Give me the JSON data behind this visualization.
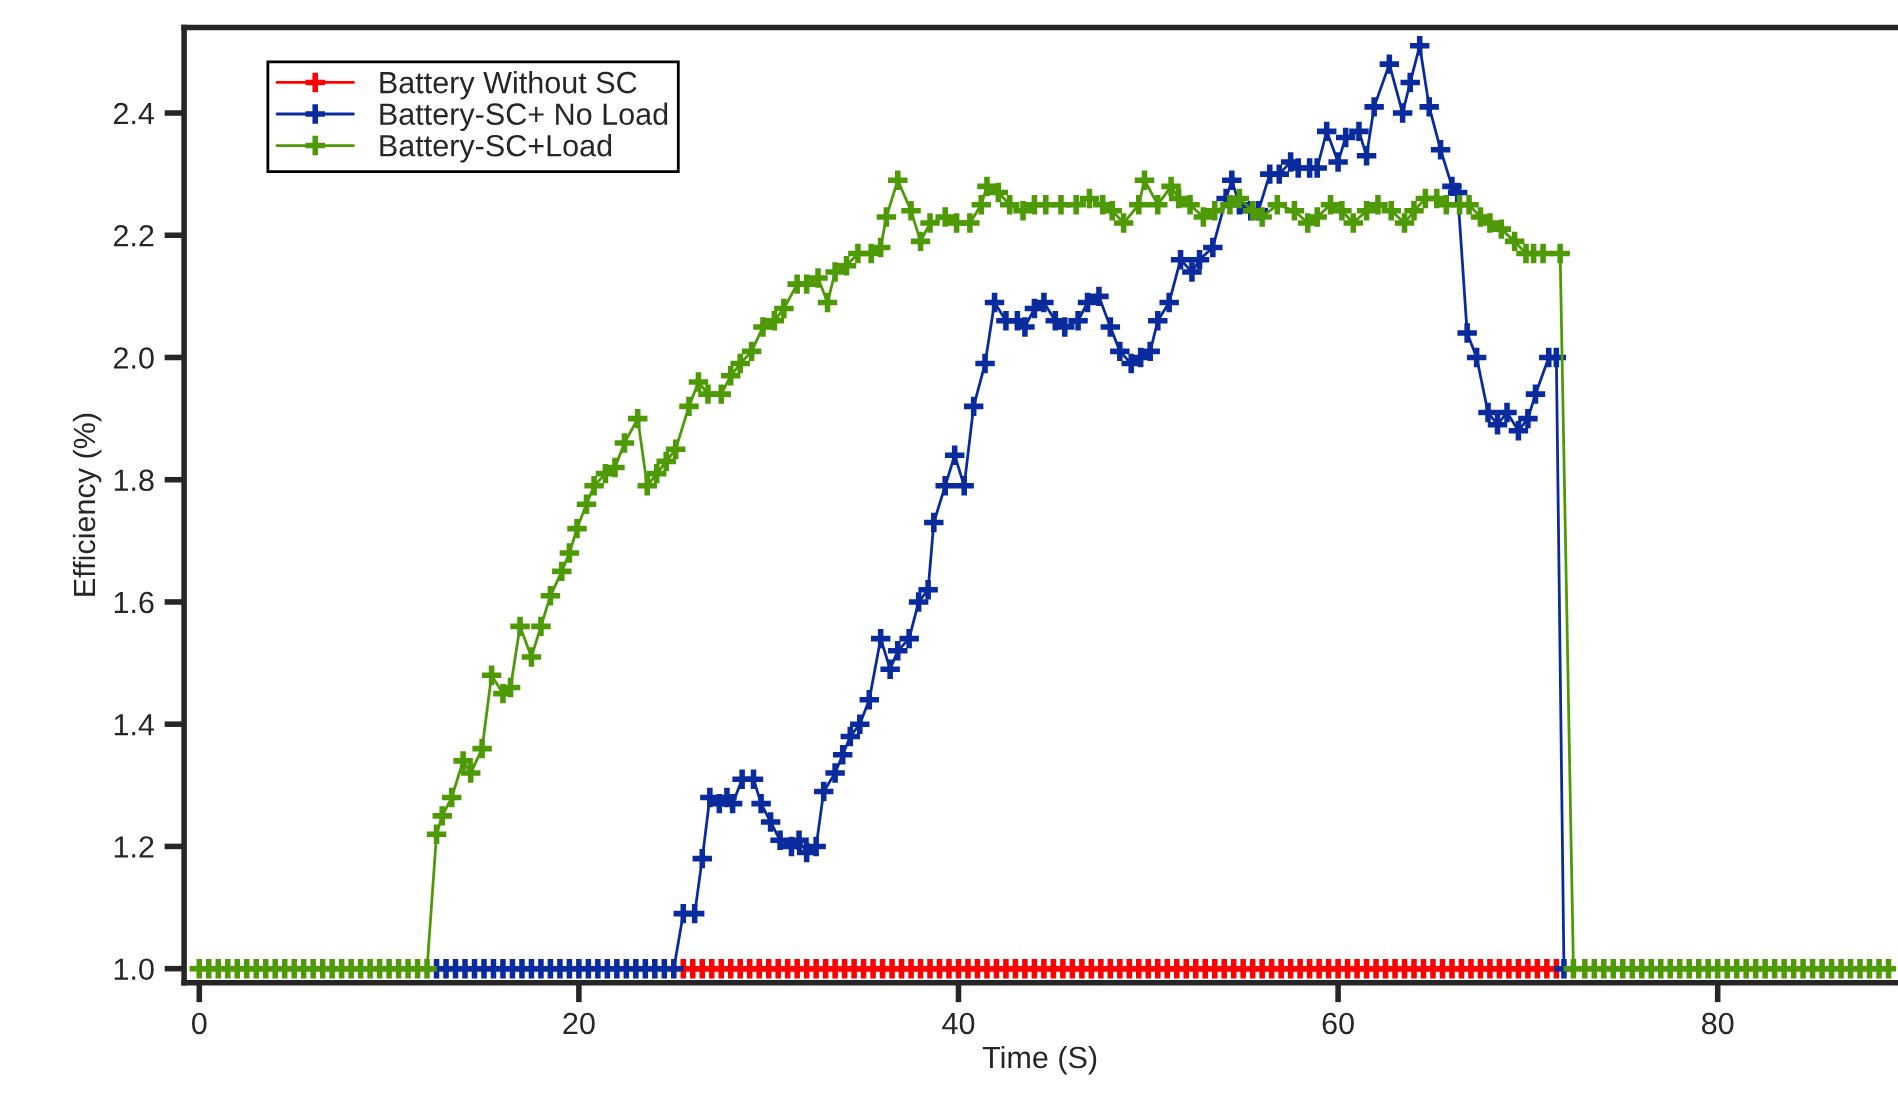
{
  "chart_data": {
    "type": "line",
    "xlabel": "Time (S)",
    "ylabel": "Efficiency (%)",
    "xlim": [
      -0.8,
      89.4
    ],
    "ylim": [
      0.977,
      2.54
    ],
    "xticks": [
      0,
      20,
      40,
      60,
      80
    ],
    "yticks": [
      {
        "value": 1.0,
        "label": "1.0"
      },
      {
        "value": 1.2,
        "label": "1.2"
      },
      {
        "value": 1.4,
        "label": "1.4"
      },
      {
        "value": 1.6,
        "label": "1.6"
      },
      {
        "value": 1.8,
        "label": "1.8"
      },
      {
        "value": 2.0,
        "label": "2.0"
      },
      {
        "value": 2.2,
        "label": "2.2"
      },
      {
        "value": 2.4,
        "label": "2.4"
      }
    ],
    "grid": false,
    "legend": "top left",
    "marker": "cross",
    "line_style": "solid",
    "series": [
      {
        "name": "Battery Without SC",
        "color": "#ff0000",
        "type": "scatter",
        "x": [
          25.5,
          26,
          26.5,
          27,
          27.5,
          28,
          28.5,
          29,
          29.5,
          30,
          30.5,
          31,
          31.5,
          32,
          32.5,
          33,
          33.5,
          34,
          34.5,
          35,
          35.5,
          36,
          36.5,
          37,
          37.5,
          38,
          38.5,
          39,
          39.5,
          40,
          40.5,
          41,
          41.5,
          42,
          42.5,
          43,
          43.5,
          44,
          44.5,
          45,
          45.5,
          46,
          46.5,
          47,
          47.5,
          48,
          48.5,
          49,
          49.5,
          50,
          50.5,
          51,
          51.5,
          52,
          52.5,
          53,
          53.5,
          54,
          54.5,
          55,
          55.5,
          56,
          56.5,
          57,
          57.5,
          58,
          58.5,
          59,
          59.5,
          60,
          60.5,
          61,
          61.5,
          62,
          62.5,
          63,
          63.5,
          64,
          64.5,
          65,
          65.5,
          66,
          66.5,
          67,
          67.5,
          68,
          68.5,
          69,
          69.5,
          70,
          70.5,
          71,
          71.5
        ],
        "values": [
          1.0,
          1.0,
          1.0,
          1.0,
          1.0,
          1.0,
          1.0,
          1.0,
          1.0,
          1.0,
          1.0,
          1.0,
          1.0,
          1.0,
          1.0,
          1.0,
          1.0,
          1.0,
          1.0,
          1.0,
          1.0,
          1.0,
          1.0,
          1.0,
          1.0,
          1.0,
          1.0,
          1.0,
          1.0,
          1.0,
          1.0,
          1.0,
          1.0,
          1.0,
          1.0,
          1.0,
          1.0,
          1.0,
          1.0,
          1.0,
          1.0,
          1.0,
          1.0,
          1.0,
          1.0,
          1.0,
          1.0,
          1.0,
          1.0,
          1.0,
          1.0,
          1.0,
          1.0,
          1.0,
          1.0,
          1.0,
          1.0,
          1.0,
          1.0,
          1.0,
          1.0,
          1.0,
          1.0,
          1.0,
          1.0,
          1.0,
          1.0,
          1.0,
          1.0,
          1.0,
          1.0,
          1.0,
          1.0,
          1.0,
          1.0,
          1.0,
          1.0,
          1.0,
          1.0,
          1.0,
          1.0,
          1.0,
          1.0,
          1.0,
          1.0,
          1.0,
          1.0,
          1.0,
          1.0,
          1.0,
          1.0,
          1.0,
          1.0
        ]
      },
      {
        "name": "Battery-SC+ No Load",
        "color": "#0a2b9e",
        "x": [
          12.5,
          13,
          13.5,
          14,
          14.5,
          15,
          15.5,
          16,
          16.5,
          17,
          17.5,
          18,
          18.5,
          19,
          19.5,
          20,
          20.5,
          21,
          21.5,
          22,
          22.5,
          23,
          23.5,
          24,
          24.5,
          25,
          25.5,
          26.1,
          26.5,
          26.9,
          27.4,
          27.8,
          28.1,
          28.6,
          29.2,
          29.6,
          30.1,
          30.6,
          31.2,
          31.6,
          32.0,
          32.5,
          32.9,
          33.5,
          33.9,
          34.3,
          34.8,
          35.3,
          35.9,
          36.4,
          36.8,
          37.4,
          37.9,
          38.4,
          38.7,
          39.3,
          39.8,
          40.3,
          40.8,
          41.4,
          41.9,
          42.5,
          43.1,
          43.5,
          44.0,
          44.5,
          45.1,
          45.6,
          46.3,
          46.8,
          47.4,
          48.0,
          48.5,
          49.1,
          49.6,
          50.1,
          50.5,
          51.1,
          51.7,
          52.3,
          52.7,
          53.4,
          54.1,
          54.4,
          54.8,
          55.4,
          55.8,
          56.4,
          56.9,
          57.5,
          57.9,
          58.5,
          58.9,
          59.4,
          60.0,
          60.4,
          61.1,
          61.5,
          61.9,
          62.7,
          63.4,
          63.8,
          64.3,
          64.8,
          65.4,
          66.0,
          66.3,
          66.8,
          67.3,
          67.9,
          68.4,
          68.9,
          69.5,
          70.0,
          70.4,
          71.1,
          71.5,
          71.9
        ],
        "values": [
          1.0,
          1.0,
          1.0,
          1.0,
          1.0,
          1.0,
          1.0,
          1.0,
          1.0,
          1.0,
          1.0,
          1.0,
          1.0,
          1.0,
          1.0,
          1.0,
          1.0,
          1.0,
          1.0,
          1.0,
          1.0,
          1.0,
          1.0,
          1.0,
          1.0,
          1.0,
          1.09,
          1.09,
          1.18,
          1.28,
          1.27,
          1.28,
          1.27,
          1.31,
          1.31,
          1.27,
          1.24,
          1.21,
          1.2,
          1.21,
          1.19,
          1.2,
          1.29,
          1.32,
          1.35,
          1.38,
          1.4,
          1.44,
          1.54,
          1.49,
          1.52,
          1.54,
          1.6,
          1.62,
          1.73,
          1.79,
          1.84,
          1.79,
          1.92,
          1.99,
          2.09,
          2.06,
          2.06,
          2.05,
          2.08,
          2.09,
          2.06,
          2.05,
          2.06,
          2.09,
          2.1,
          2.05,
          2.01,
          1.99,
          2.0,
          2.01,
          2.06,
          2.09,
          2.16,
          2.14,
          2.16,
          2.18,
          2.26,
          2.29,
          2.25,
          2.24,
          2.24,
          2.3,
          2.3,
          2.32,
          2.31,
          2.31,
          2.31,
          2.37,
          2.32,
          2.36,
          2.37,
          2.33,
          2.41,
          2.48,
          2.4,
          2.45,
          2.51,
          2.41,
          2.34,
          2.28,
          2.27,
          2.04,
          2.0,
          1.91,
          1.89,
          1.91,
          1.88,
          1.9,
          1.94,
          2.0,
          2.0,
          1.0
        ]
      },
      {
        "name": "Battery-SC+Load",
        "color": "#4e9a06",
        "x": [
          0,
          0.5,
          1,
          1.5,
          2,
          2.5,
          3,
          3.5,
          4,
          4.5,
          5,
          5.5,
          6,
          6.5,
          7,
          7.5,
          8,
          8.5,
          9,
          9.5,
          10,
          10.5,
          11,
          11.5,
          12,
          12.5,
          12.8,
          13.3,
          13.9,
          14.3,
          14.9,
          15.4,
          16.0,
          16.4,
          16.9,
          17.5,
          18.0,
          18.5,
          19.1,
          19.5,
          19.9,
          20.4,
          20.8,
          21.4,
          21.9,
          22.4,
          23.1,
          23.6,
          24.1,
          24.6,
          25.1,
          25.8,
          26.3,
          26.8,
          27.5,
          28.0,
          28.5,
          29.1,
          29.7,
          30.3,
          30.8,
          31.5,
          32.0,
          32.6,
          33.1,
          33.5,
          34.1,
          34.7,
          35.4,
          35.9,
          36.2,
          36.8,
          37.5,
          38.0,
          38.5,
          39.3,
          39.9,
          40.6,
          41.2,
          41.5,
          42.1,
          42.7,
          43.4,
          44.0,
          44.6,
          45.4,
          46.2,
          46.9,
          47.6,
          48.1,
          48.7,
          49.5,
          49.8,
          50.5,
          51.2,
          51.6,
          52.2,
          52.9,
          53.5,
          54.3,
          54.8,
          55.5,
          56.0,
          56.8,
          57.7,
          58.4,
          58.9,
          59.6,
          60.2,
          60.8,
          61.5,
          62.1,
          62.8,
          63.5,
          64.0,
          64.6,
          65.2,
          65.7,
          66.4,
          66.9,
          67.5,
          68.0,
          68.6,
          69.3,
          69.9,
          70.3,
          70.8,
          71.7,
          72.4,
          73,
          73.5,
          74,
          74.5,
          75,
          75.5,
          76,
          76.5,
          77,
          77.5,
          78,
          78.5,
          79,
          79.5,
          80,
          80.5,
          81,
          81.5,
          82,
          82.5,
          83,
          83.5,
          84,
          84.5,
          85,
          85.5,
          86,
          86.5,
          87,
          87.5,
          88,
          88.5,
          89
        ],
        "values": [
          1.0,
          1.0,
          1.0,
          1.0,
          1.0,
          1.0,
          1.0,
          1.0,
          1.0,
          1.0,
          1.0,
          1.0,
          1.0,
          1.0,
          1.0,
          1.0,
          1.0,
          1.0,
          1.0,
          1.0,
          1.0,
          1.0,
          1.0,
          1.0,
          1.0,
          1.22,
          1.25,
          1.28,
          1.34,
          1.32,
          1.36,
          1.48,
          1.45,
          1.46,
          1.56,
          1.51,
          1.56,
          1.61,
          1.65,
          1.68,
          1.72,
          1.76,
          1.79,
          1.81,
          1.82,
          1.86,
          1.9,
          1.79,
          1.81,
          1.83,
          1.85,
          1.92,
          1.96,
          1.94,
          1.94,
          1.97,
          1.99,
          2.01,
          2.05,
          2.06,
          2.08,
          2.12,
          2.12,
          2.13,
          2.09,
          2.14,
          2.15,
          2.17,
          2.17,
          2.18,
          2.23,
          2.29,
          2.24,
          2.19,
          2.22,
          2.23,
          2.22,
          2.22,
          2.25,
          2.28,
          2.27,
          2.25,
          2.24,
          2.25,
          2.25,
          2.25,
          2.25,
          2.26,
          2.25,
          2.24,
          2.22,
          2.25,
          2.29,
          2.25,
          2.28,
          2.26,
          2.25,
          2.23,
          2.24,
          2.25,
          2.26,
          2.24,
          2.23,
          2.25,
          2.24,
          2.22,
          2.23,
          2.25,
          2.24,
          2.22,
          2.24,
          2.25,
          2.24,
          2.22,
          2.24,
          2.26,
          2.26,
          2.25,
          2.25,
          2.25,
          2.23,
          2.22,
          2.21,
          2.19,
          2.17,
          2.17,
          2.17,
          2.17,
          1.0,
          1.0,
          1.0,
          1.0,
          1.0,
          1.0,
          1.0,
          1.0,
          1.0,
          1.0,
          1.0,
          1.0,
          1.0,
          1.0,
          1.0,
          1.0,
          1.0,
          1.0,
          1.0,
          1.0,
          1.0,
          1.0,
          1.0,
          1.0,
          1.0,
          1.0,
          1.0,
          1.0,
          1.0,
          1.0,
          1.0,
          1.0,
          1.0,
          1.0
        ]
      }
    ]
  }
}
